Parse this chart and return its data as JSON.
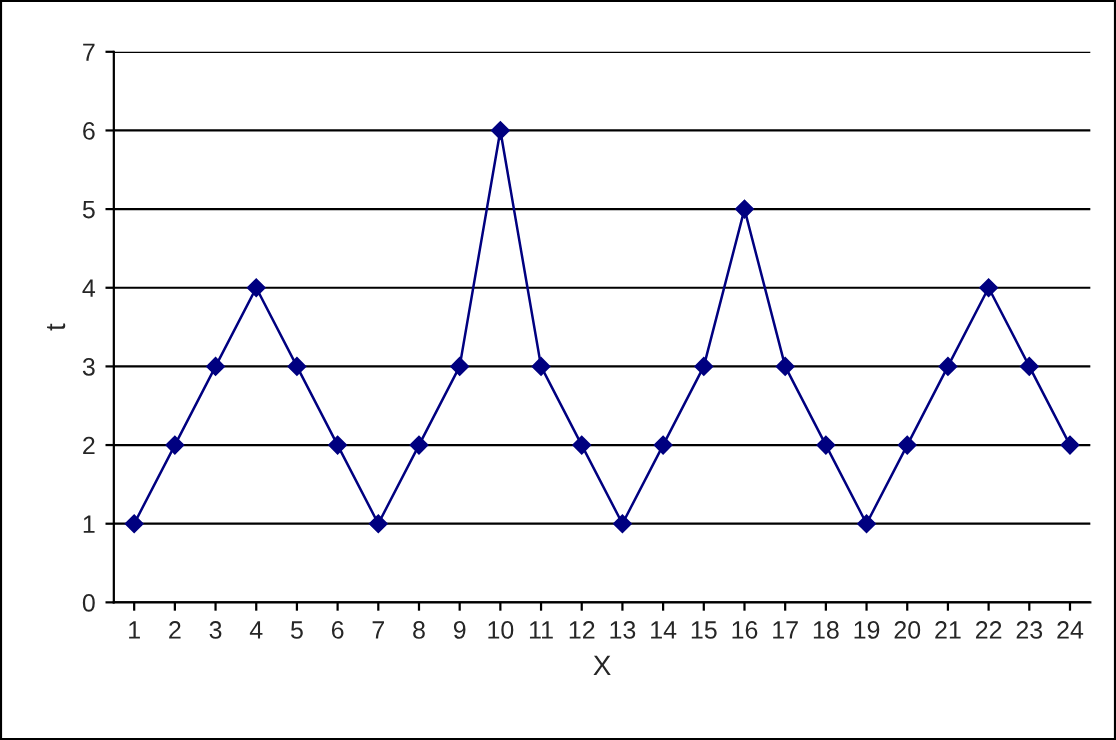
{
  "chart_data": {
    "type": "line",
    "xlabel": "X",
    "ylabel": "t",
    "categories": [
      "1",
      "2",
      "3",
      "4",
      "5",
      "6",
      "7",
      "8",
      "9",
      "10",
      "11",
      "12",
      "13",
      "14",
      "15",
      "16",
      "17",
      "18",
      "19",
      "20",
      "21",
      "22",
      "23",
      "24"
    ],
    "series": [
      {
        "color": "#000080",
        "values": [
          1,
          2,
          3,
          4,
          3,
          2,
          1,
          2,
          3,
          6,
          3,
          2,
          1,
          2,
          3,
          5,
          3,
          2,
          1,
          2,
          3,
          4,
          3,
          2
        ]
      }
    ],
    "ylim": [
      0,
      7
    ],
    "yticks": [
      0,
      1,
      2,
      3,
      4,
      5,
      6,
      7
    ],
    "grid": "y",
    "marker": "diamond",
    "line_style": "solid",
    "legend": false
  }
}
